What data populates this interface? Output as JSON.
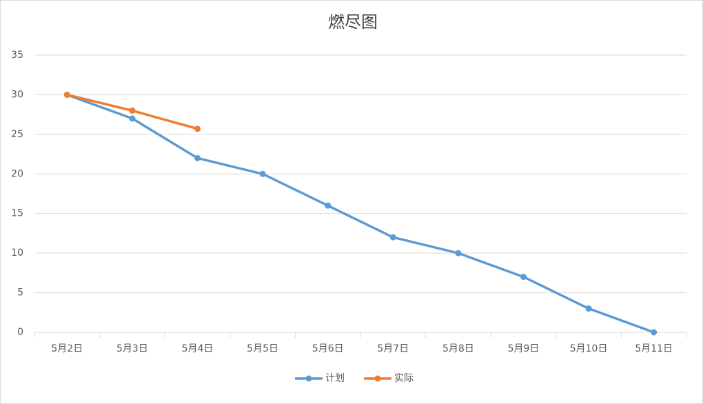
{
  "chart_data": {
    "type": "line",
    "title": "燃尽图",
    "categories": [
      "5月2日",
      "5月3日",
      "5月4日",
      "5月5日",
      "5月6日",
      "5月7日",
      "5月8日",
      "5月9日",
      "5月10日",
      "5月11日"
    ],
    "series": [
      {
        "name": "计划",
        "color": "#5b9bd5",
        "values": [
          30,
          27,
          22,
          20,
          16,
          12,
          10,
          7,
          3,
          0
        ]
      },
      {
        "name": "实际",
        "color": "#ed7d31",
        "values": [
          30,
          28,
          25.7,
          null,
          null,
          null,
          null,
          null,
          null,
          null
        ]
      }
    ],
    "ylim": [
      0,
      35
    ],
    "yticks": [
      0,
      5,
      10,
      15,
      20,
      25,
      30,
      35
    ],
    "grid": true,
    "legend": "bottom"
  }
}
